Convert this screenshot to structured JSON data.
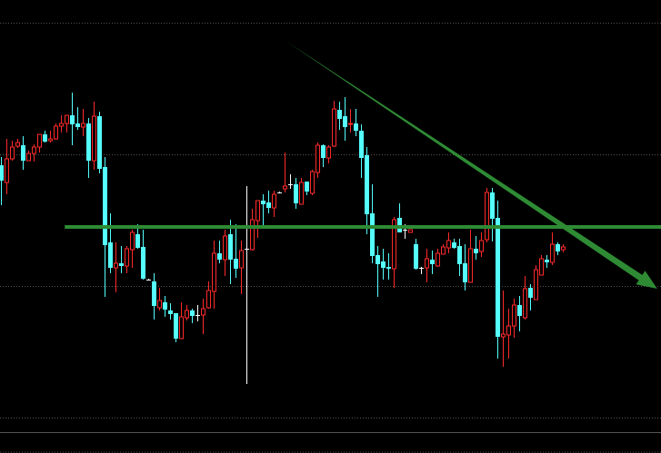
{
  "chart_data": {
    "type": "candlestick",
    "title": "",
    "xlabel": "",
    "ylabel": "",
    "ylim": [
      0,
      50
    ],
    "grid": true,
    "grid_levels": [
      47.5,
      33.0,
      18.5,
      4.0
    ],
    "colors": {
      "background": "#000000",
      "up": "#ff2a2a",
      "down": "#55ffff",
      "doji": "#ffffff",
      "grid": "#555555",
      "annotation": "#2e8b34"
    },
    "candles": [
      [
        31.8,
        32.7,
        27.4,
        30.1
      ],
      [
        29.9,
        34.7,
        28.6,
        32.5
      ],
      [
        32.5,
        34.5,
        32.3,
        33.8
      ],
      [
        33.9,
        34.7,
        33.7,
        34.3
      ],
      [
        34.0,
        35.0,
        31.3,
        32.3
      ],
      [
        32.3,
        33.4,
        32.3,
        33.1
      ],
      [
        33.1,
        34.1,
        32.2,
        33.8
      ],
      [
        33.8,
        35.2,
        33.2,
        35.2
      ],
      [
        35.2,
        35.6,
        34.3,
        34.4
      ],
      [
        34.5,
        35.6,
        34.3,
        34.7
      ],
      [
        34.7,
        36.4,
        34.6,
        36.1
      ],
      [
        36.1,
        37.3,
        35.4,
        36.4
      ],
      [
        36.4,
        37.3,
        35.4,
        37.3
      ],
      [
        37.3,
        39.8,
        34.0,
        36.3
      ],
      [
        36.4,
        38.2,
        35.7,
        36.0
      ],
      [
        36.0,
        38.0,
        35.0,
        36.4
      ],
      [
        36.4,
        37.0,
        30.4,
        32.3
      ],
      [
        32.3,
        38.8,
        31.3,
        37.2
      ],
      [
        37.2,
        37.7,
        30.9,
        31.4
      ],
      [
        31.6,
        32.7,
        17.3,
        23.0
      ],
      [
        23.3,
        26.5,
        19.9,
        20.5
      ],
      [
        20.5,
        23.3,
        17.8,
        21.0
      ],
      [
        21.0,
        22.9,
        19.9,
        20.7
      ],
      [
        20.7,
        22.9,
        19.9,
        22.6
      ],
      [
        22.5,
        24.7,
        20.5,
        24.4
      ],
      [
        24.2,
        25.3,
        22.6,
        22.7
      ],
      [
        22.8,
        24.7,
        19.2,
        19.3
      ],
      [
        19.2,
        19.3,
        19.1,
        19.2
      ],
      [
        19.0,
        19.9,
        14.8,
        16.3
      ],
      [
        16.1,
        18.3,
        15.8,
        16.9
      ],
      [
        16.7,
        17.4,
        15.1,
        15.9
      ],
      [
        15.8,
        16.6,
        14.8,
        15.4
      ],
      [
        15.5,
        15.5,
        12.3,
        12.7
      ],
      [
        12.7,
        16.7,
        12.7,
        15.1
      ],
      [
        15.0,
        16.4,
        14.7,
        15.8
      ],
      [
        15.8,
        16.0,
        14.4,
        15.2
      ],
      [
        15.3,
        16.4,
        14.6,
        15.3
      ],
      [
        15.3,
        17.1,
        13.2,
        16.0
      ],
      [
        16.1,
        19.0,
        16.0,
        18.0
      ],
      [
        17.9,
        23.5,
        16.0,
        22.1
      ],
      [
        22.1,
        23.5,
        21.0,
        21.4
      ],
      [
        21.4,
        24.7,
        19.6,
        24.0
      ],
      [
        24.2,
        25.8,
        18.7,
        21.4
      ],
      [
        21.5,
        25.3,
        19.4,
        20.4
      ],
      [
        20.5,
        23.5,
        17.6,
        22.4
      ],
      [
        22.6,
        29.5,
        7.7,
        22.6
      ],
      [
        22.5,
        27.0,
        22.4,
        25.8
      ],
      [
        25.7,
        27.9,
        23.8,
        27.9
      ],
      [
        27.9,
        28.6,
        25.1,
        27.5
      ],
      [
        27.7,
        29.0,
        26.5,
        27.1
      ],
      [
        27.1,
        29.0,
        26.1,
        28.6
      ],
      [
        28.8,
        28.9,
        28.7,
        28.8
      ],
      [
        29.2,
        33.2,
        28.8,
        29.5
      ],
      [
        29.7,
        30.8,
        29.2,
        29.7
      ],
      [
        29.7,
        30.4,
        27.0,
        27.6
      ],
      [
        27.5,
        30.4,
        27.5,
        29.9
      ],
      [
        30.0,
        30.0,
        28.5,
        28.9
      ],
      [
        28.7,
        31.3,
        28.5,
        31.1
      ],
      [
        31.0,
        34.3,
        30.4,
        34.0
      ],
      [
        34.0,
        34.1,
        31.6,
        32.6
      ],
      [
        32.6,
        34.0,
        32.0,
        33.8
      ],
      [
        33.9,
        38.9,
        33.8,
        38.0
      ],
      [
        37.9,
        38.8,
        35.7,
        36.9
      ],
      [
        37.2,
        39.3,
        34.5,
        36.0
      ],
      [
        36.3,
        38.0,
        35.4,
        36.4
      ],
      [
        36.4,
        38.0,
        35.0,
        35.6
      ],
      [
        35.6,
        36.3,
        30.4,
        32.6
      ],
      [
        32.9,
        33.8,
        24.2,
        26.4
      ],
      [
        26.5,
        29.7,
        21.0,
        21.8
      ],
      [
        21.9,
        22.9,
        17.3,
        20.9
      ],
      [
        21.2,
        22.6,
        19.2,
        20.5
      ],
      [
        20.6,
        22.1,
        19.2,
        20.4
      ],
      [
        20.4,
        26.1,
        18.3,
        25.8
      ],
      [
        26.0,
        27.6,
        24.4,
        24.4
      ],
      [
        24.7,
        25.3,
        23.7,
        24.7
      ],
      [
        24.4,
        24.7,
        24.4,
        24.7
      ],
      [
        23.1,
        23.7,
        20.3,
        20.4
      ],
      [
        20.5,
        20.6,
        19.8,
        20.5
      ],
      [
        20.5,
        22.6,
        18.9,
        21.5
      ],
      [
        21.4,
        22.4,
        19.8,
        20.9
      ],
      [
        20.7,
        22.6,
        20.6,
        22.1
      ],
      [
        22.0,
        23.1,
        22.0,
        22.8
      ],
      [
        22.7,
        24.4,
        22.1,
        23.5
      ],
      [
        23.3,
        23.7,
        22.6,
        22.7
      ],
      [
        22.9,
        23.7,
        19.6,
        20.9
      ],
      [
        21.0,
        23.1,
        18.0,
        18.9
      ],
      [
        18.9,
        24.7,
        18.9,
        22.6
      ],
      [
        22.6,
        24.0,
        21.4,
        22.1
      ],
      [
        22.3,
        24.4,
        21.7,
        23.5
      ],
      [
        23.6,
        29.3,
        23.3,
        28.8
      ],
      [
        28.8,
        29.3,
        23.4,
        25.9
      ],
      [
        26.0,
        27.9,
        10.5,
        12.9
      ],
      [
        12.9,
        18.0,
        9.6,
        13.2
      ],
      [
        13.1,
        16.0,
        10.5,
        14.1
      ],
      [
        14.1,
        17.1,
        12.8,
        16.4
      ],
      [
        16.4,
        17.4,
        13.5,
        15.2
      ],
      [
        15.0,
        19.6,
        14.8,
        18.2
      ],
      [
        18.3,
        18.7,
        15.8,
        17.2
      ],
      [
        17.0,
        20.8,
        17.0,
        20.3
      ],
      [
        19.7,
        21.9,
        19.7,
        21.5
      ],
      [
        21.4,
        21.9,
        20.5,
        21.1
      ],
      [
        21.1,
        24.4,
        20.8,
        23.1
      ],
      [
        23.1,
        23.3,
        21.9,
        22.3
      ],
      [
        22.5,
        23.1,
        22.2,
        22.8
      ]
    ],
    "candle_fields": [
      "open",
      "high",
      "low",
      "close"
    ],
    "annotations": {
      "horizontal_line": {
        "price": 25.0,
        "from_index": 11.7
      },
      "trend_arrow": {
        "from": [
          52.2,
          45.5
        ],
        "to": [
          120.3,
          18.2
        ]
      }
    }
  }
}
